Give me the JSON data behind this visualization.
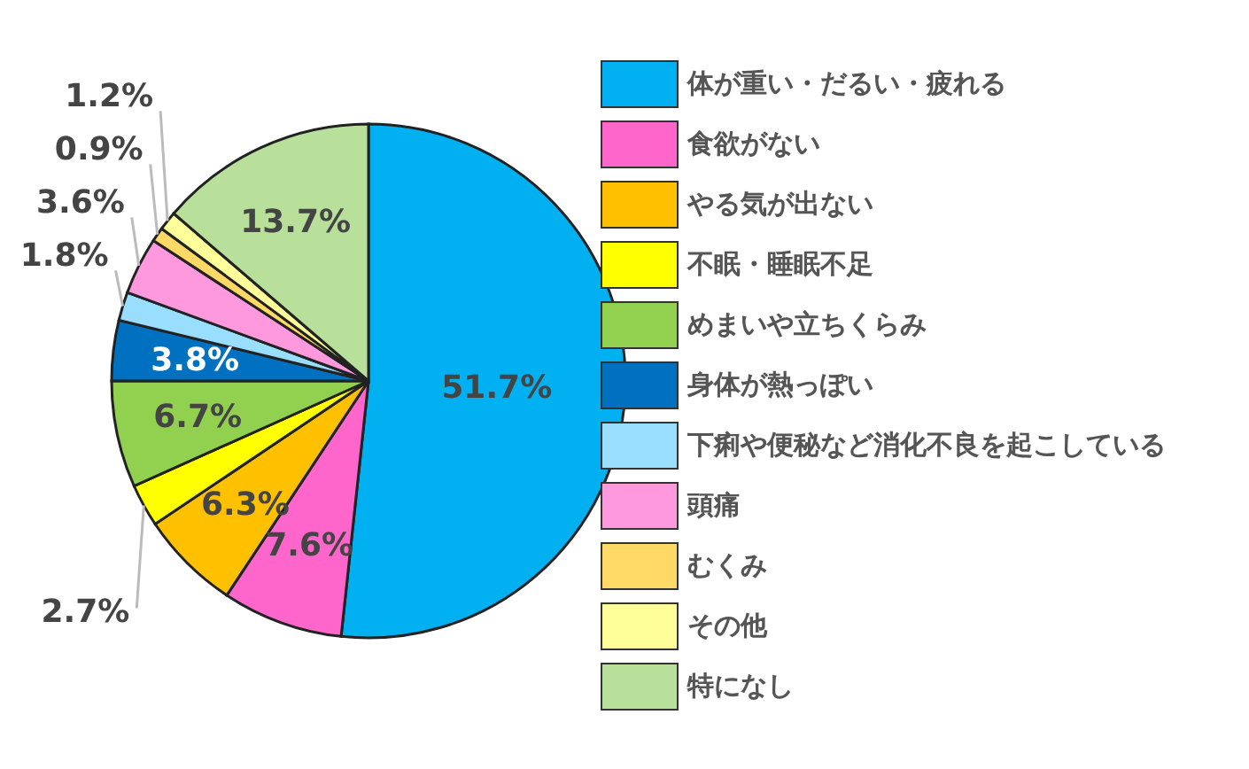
{
  "chart_data": {
    "type": "pie",
    "categories": [
      "体が重い・だるい・疲れる",
      "食欲がない",
      "やる気が出ない",
      "不眠・睡眠不足",
      "めまいや立ちくらみ",
      "身体が熱っぽい",
      "下痢や便秘など消化不良を起こしている",
      "頭痛",
      "むくみ",
      "その他",
      "特になし"
    ],
    "values": [
      51.7,
      7.6,
      6.3,
      2.7,
      6.7,
      3.8,
      1.8,
      3.6,
      0.9,
      1.2,
      13.7
    ],
    "value_labels": [
      "51.7%",
      "7.6%",
      "6.3%",
      "2.7%",
      "6.7%",
      "3.8%",
      "1.8%",
      "3.6%",
      "0.9%",
      "1.2%",
      "13.7%"
    ],
    "colors": [
      "#00b0f0",
      "#ff66cc",
      "#ffc000",
      "#ffff00",
      "#92d050",
      "#0070c0",
      "#99ddff",
      "#ff99dd",
      "#ffd966",
      "#ffff99",
      "#b8e09a"
    ],
    "legend": "right"
  }
}
